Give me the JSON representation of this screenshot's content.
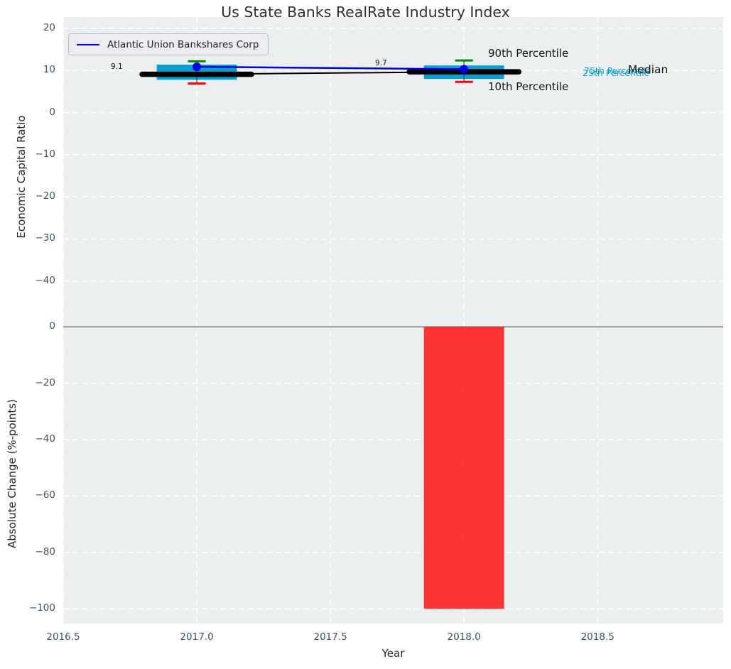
{
  "title": "Us State Banks RealRate Industry Index",
  "legend": {
    "label": "Atlantic Union Bankshares Corp"
  },
  "axes": {
    "x": {
      "label": "Year",
      "ticks": [
        "2016.5",
        "2017.0",
        "2017.5",
        "2018.0",
        "2018.5"
      ],
      "tick_values": [
        2016.5,
        2017.0,
        2017.5,
        2018.0,
        2018.5
      ]
    },
    "top_y": {
      "label": "Economic Capital Ratio",
      "ticks": [
        "20",
        "10",
        "0",
        "−10",
        "−20",
        "−30",
        "−40"
      ],
      "tick_values": [
        20,
        10,
        0,
        -10,
        -20,
        -30,
        -40
      ]
    },
    "bottom_y": {
      "label": "Absolute Change (%-points)",
      "ticks": [
        "0",
        "−20",
        "−40",
        "−60",
        "−80",
        "−100"
      ],
      "tick_values": [
        0,
        -20,
        -40,
        -60,
        -80,
        -100
      ]
    }
  },
  "annotations": {
    "median_2017": "9.1",
    "median_2018": "9.7",
    "p90_label": "90th Percentile",
    "p10_label": "10th Percentile",
    "p75_label": "75th Percentile",
    "p25_label": "25th Percentile",
    "median_label": "Median"
  },
  "colors": {
    "background": "#ebeff0",
    "grid": "#ffffff",
    "box": "#0a9fd3",
    "company_line": "#0000e6",
    "median_line": "#000000",
    "p90_cap": "#008a00",
    "p10_cap": "#ff0000",
    "whisker": "#3a3a3a",
    "bar": "#ff0000",
    "zero_line": "#9e9e9e",
    "annotation_cyan": "#0a9fd3"
  },
  "chart_data": [
    {
      "type": "line",
      "panel": "top",
      "title": "Us State Banks RealRate Industry Index",
      "ylabel": "Economic Capital Ratio",
      "xlim": [
        2016.5,
        2018.97
      ],
      "ylim": [
        -50,
        22.7
      ],
      "grid": true,
      "legend_position": "upper left",
      "x": [
        2017,
        2018
      ],
      "series": [
        {
          "role": "company",
          "name": "Atlantic Union Bankshares Corp",
          "values": [
            10.9,
            10.3
          ]
        },
        {
          "role": "median",
          "name": "Median",
          "values": [
            9.1,
            9.7
          ],
          "point_labels": [
            "9.1",
            "9.7"
          ]
        },
        {
          "role": "q75",
          "name": "75th Percentile",
          "values": [
            11.4,
            11.2
          ]
        },
        {
          "role": "q25",
          "name": "25th Percentile",
          "values": [
            7.8,
            8.0
          ]
        },
        {
          "role": "p90",
          "name": "90th Percentile",
          "values": [
            12.2,
            12.4
          ]
        },
        {
          "role": "p10",
          "name": "10th Percentile",
          "values": [
            6.9,
            7.3
          ]
        }
      ],
      "box_width_years": 0.3,
      "median_segment_width_years": 0.41,
      "cap_width_years": 0.067
    },
    {
      "type": "bar",
      "panel": "bottom",
      "ylabel": "Absolute Change (%-points)",
      "xlabel": "Year",
      "xlim": [
        2016.5,
        2018.97
      ],
      "ylim": [
        -105.2,
        1.3
      ],
      "grid": true,
      "zero_line": true,
      "x": [
        2018
      ],
      "values": [
        -100
      ],
      "bar_width_years": 0.3
    }
  ]
}
